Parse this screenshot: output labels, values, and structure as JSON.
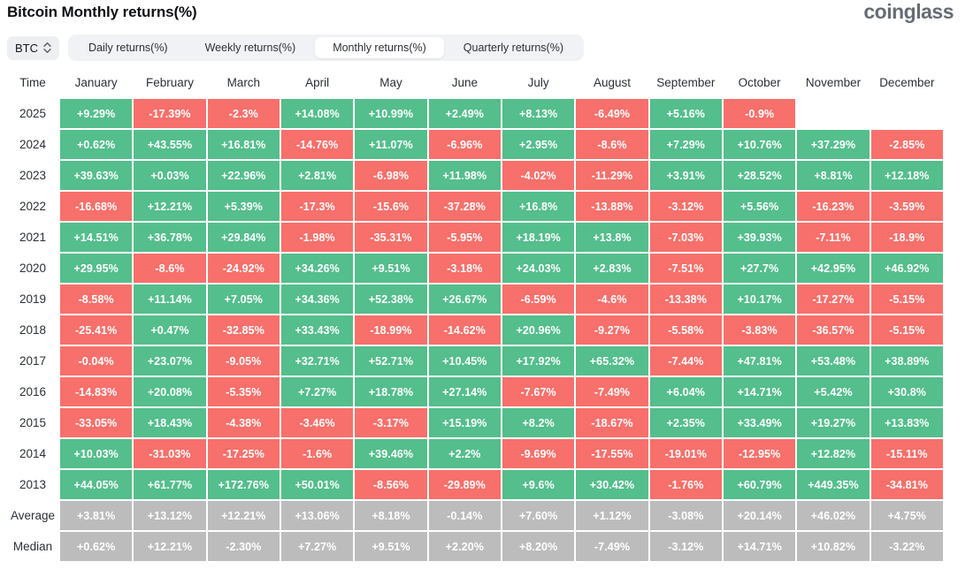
{
  "header": {
    "title": "Bitcoin Monthly returns(%)",
    "logo": "coinglass"
  },
  "controls": {
    "symbol_selector": {
      "value": "BTC",
      "icon": "chevron-up-down-icon"
    },
    "tabs": [
      {
        "label": "Daily returns(%)",
        "active": false
      },
      {
        "label": "Weekly returns(%)",
        "active": false
      },
      {
        "label": "Monthly returns(%)",
        "active": true
      },
      {
        "label": "Quarterly returns(%)",
        "active": false
      }
    ]
  },
  "colors": {
    "positive": "#54be8c",
    "negative": "#f7706b",
    "neutral": "#bcbcbc",
    "cell_text": "#ffffff",
    "tab_bar_bg": "#f1f2f5",
    "active_tab_bg": "#ffffff"
  },
  "chart_data": {
    "type": "heatmap",
    "title": "Bitcoin Monthly returns(%)",
    "legend_position": "none",
    "grid": false,
    "columns": [
      "Time",
      "January",
      "February",
      "March",
      "April",
      "May",
      "June",
      "July",
      "August",
      "September",
      "October",
      "November",
      "December"
    ],
    "rows": [
      {
        "label": "2025",
        "summary": false,
        "values": [
          "+9.29%",
          "-17.39%",
          "-2.3%",
          "+14.08%",
          "+10.99%",
          "+2.49%",
          "+8.13%",
          "-6.49%",
          "+5.16%",
          "-0.9%",
          "",
          ""
        ]
      },
      {
        "label": "2024",
        "summary": false,
        "values": [
          "+0.62%",
          "+43.55%",
          "+16.81%",
          "-14.76%",
          "+11.07%",
          "-6.96%",
          "+2.95%",
          "-8.6%",
          "+7.29%",
          "+10.76%",
          "+37.29%",
          "-2.85%"
        ]
      },
      {
        "label": "2023",
        "summary": false,
        "values": [
          "+39.63%",
          "+0.03%",
          "+22.96%",
          "+2.81%",
          "-6.98%",
          "+11.98%",
          "-4.02%",
          "-11.29%",
          "+3.91%",
          "+28.52%",
          "+8.81%",
          "+12.18%"
        ]
      },
      {
        "label": "2022",
        "summary": false,
        "values": [
          "-16.68%",
          "+12.21%",
          "+5.39%",
          "-17.3%",
          "-15.6%",
          "-37.28%",
          "+16.8%",
          "-13.88%",
          "-3.12%",
          "+5.56%",
          "-16.23%",
          "-3.59%"
        ]
      },
      {
        "label": "2021",
        "summary": false,
        "values": [
          "+14.51%",
          "+36.78%",
          "+29.84%",
          "-1.98%",
          "-35.31%",
          "-5.95%",
          "+18.19%",
          "+13.8%",
          "-7.03%",
          "+39.93%",
          "-7.11%",
          "-18.9%"
        ]
      },
      {
        "label": "2020",
        "summary": false,
        "values": [
          "+29.95%",
          "-8.6%",
          "-24.92%",
          "+34.26%",
          "+9.51%",
          "-3.18%",
          "+24.03%",
          "+2.83%",
          "-7.51%",
          "+27.7%",
          "+42.95%",
          "+46.92%"
        ]
      },
      {
        "label": "2019",
        "summary": false,
        "values": [
          "-8.58%",
          "+11.14%",
          "+7.05%",
          "+34.36%",
          "+52.38%",
          "+26.67%",
          "-6.59%",
          "-4.6%",
          "-13.38%",
          "+10.17%",
          "-17.27%",
          "-5.15%"
        ]
      },
      {
        "label": "2018",
        "summary": false,
        "values": [
          "-25.41%",
          "+0.47%",
          "-32.85%",
          "+33.43%",
          "-18.99%",
          "-14.62%",
          "+20.96%",
          "-9.27%",
          "-5.58%",
          "-3.83%",
          "-36.57%",
          "-5.15%"
        ]
      },
      {
        "label": "2017",
        "summary": false,
        "values": [
          "-0.04%",
          "+23.07%",
          "-9.05%",
          "+32.71%",
          "+52.71%",
          "+10.45%",
          "+17.92%",
          "+65.32%",
          "-7.44%",
          "+47.81%",
          "+53.48%",
          "+38.89%"
        ]
      },
      {
        "label": "2016",
        "summary": false,
        "values": [
          "-14.83%",
          "+20.08%",
          "-5.35%",
          "+7.27%",
          "+18.78%",
          "+27.14%",
          "-7.67%",
          "-7.49%",
          "+6.04%",
          "+14.71%",
          "+5.42%",
          "+30.8%"
        ]
      },
      {
        "label": "2015",
        "summary": false,
        "values": [
          "-33.05%",
          "+18.43%",
          "-4.38%",
          "-3.46%",
          "-3.17%",
          "+15.19%",
          "+8.2%",
          "-18.67%",
          "+2.35%",
          "+33.49%",
          "+19.27%",
          "+13.83%"
        ]
      },
      {
        "label": "2014",
        "summary": false,
        "values": [
          "+10.03%",
          "-31.03%",
          "-17.25%",
          "-1.6%",
          "+39.46%",
          "+2.2%",
          "-9.69%",
          "-17.55%",
          "-19.01%",
          "-12.95%",
          "+12.82%",
          "-15.11%"
        ]
      },
      {
        "label": "2013",
        "summary": false,
        "values": [
          "+44.05%",
          "+61.77%",
          "+172.76%",
          "+50.01%",
          "-8.56%",
          "-29.89%",
          "+9.6%",
          "+30.42%",
          "-1.76%",
          "+60.79%",
          "+449.35%",
          "-34.81%"
        ]
      },
      {
        "label": "Average",
        "summary": true,
        "values": [
          "+3.81%",
          "+13.12%",
          "+12.21%",
          "+13.06%",
          "+8.18%",
          "-0.14%",
          "+7.60%",
          "+1.12%",
          "-3.08%",
          "+20.14%",
          "+46.02%",
          "+4.75%"
        ]
      },
      {
        "label": "Median",
        "summary": true,
        "values": [
          "+0.62%",
          "+12.21%",
          "-2.30%",
          "+7.27%",
          "+9.51%",
          "+2.20%",
          "+8.20%",
          "-7.49%",
          "-3.12%",
          "+14.71%",
          "+10.82%",
          "-3.22%"
        ]
      }
    ]
  }
}
